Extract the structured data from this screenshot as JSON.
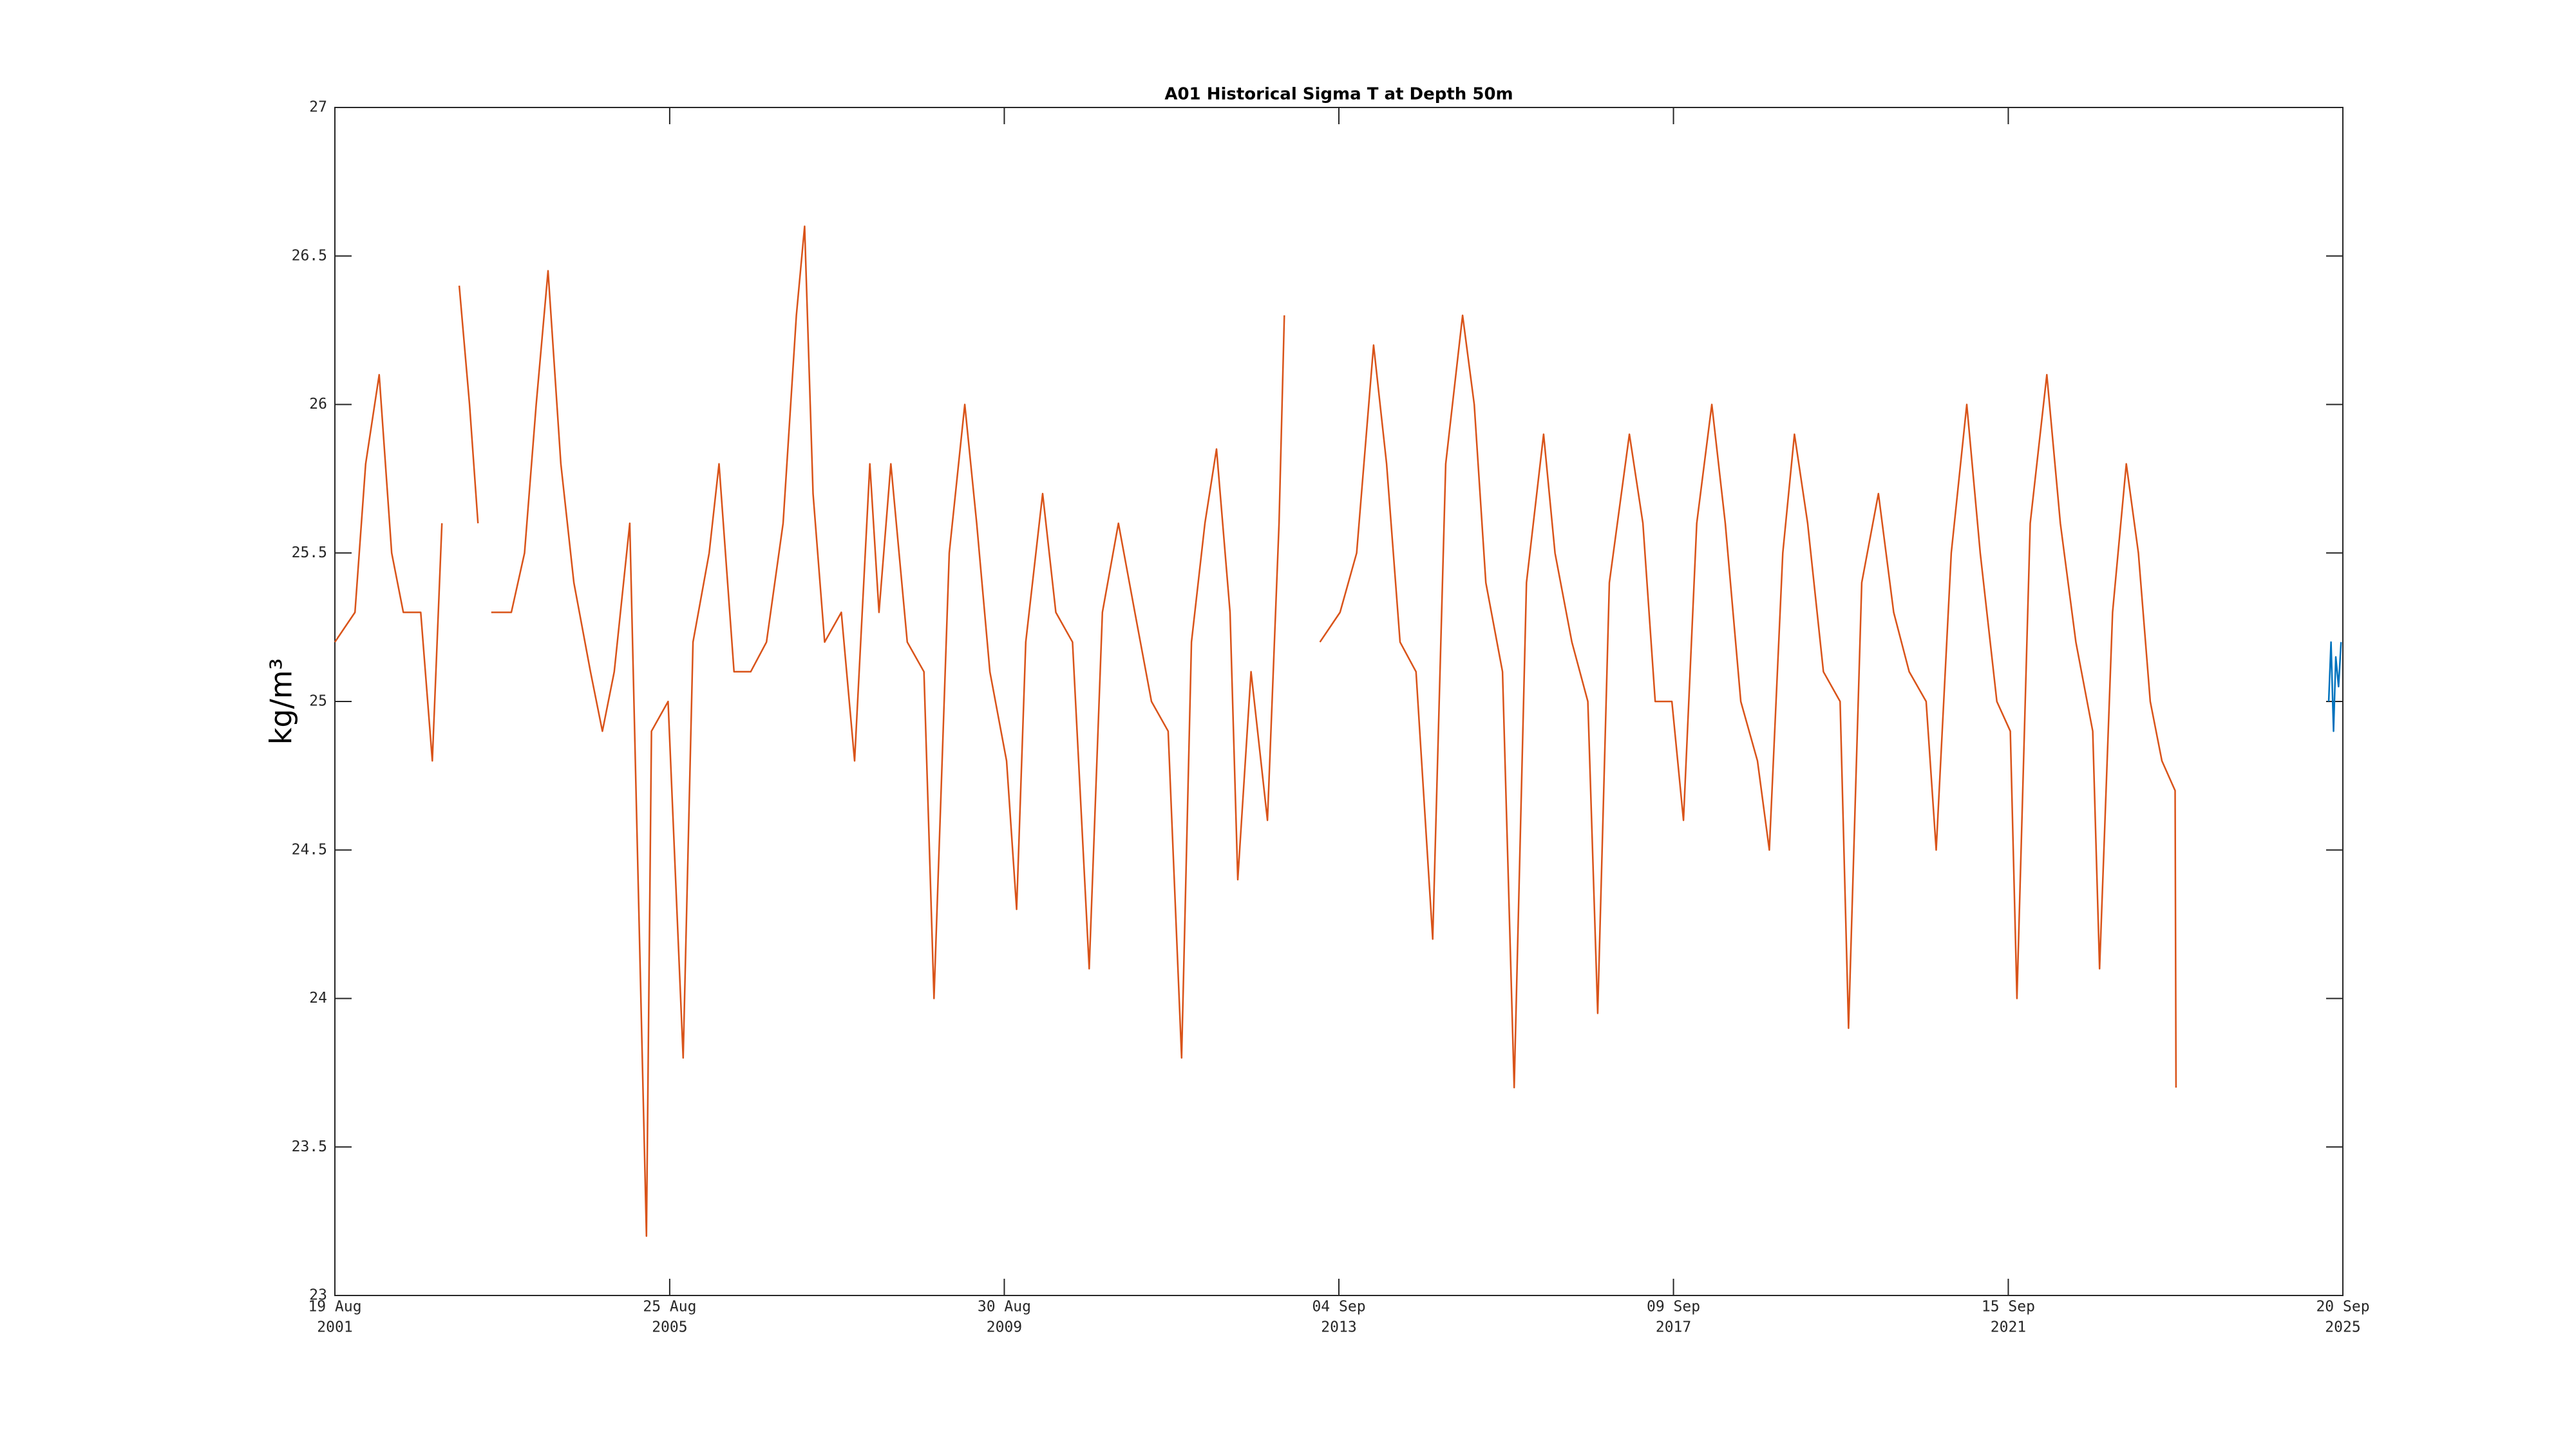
{
  "chart_data": {
    "type": "line",
    "title": "A01 Historical Sigma T at Depth 50m",
    "y_label": "kg/m³",
    "xlim": [
      "2001-08-19",
      "2025-09-20"
    ],
    "xticks": [
      {
        "value": "2001-08-19",
        "label": [
          "19 Aug",
          "2001"
        ]
      },
      {
        "value": "2005-08-25",
        "label": [
          "25 Aug",
          "2005"
        ]
      },
      {
        "value": "2009-08-30",
        "label": [
          "30 Aug",
          "2009"
        ]
      },
      {
        "value": "2013-09-04",
        "label": [
          "04 Sep",
          "2013"
        ]
      },
      {
        "value": "2017-09-09",
        "label": [
          "09 Sep",
          "2017"
        ]
      },
      {
        "value": "2021-09-15",
        "label": [
          "15 Sep",
          "2021"
        ]
      },
      {
        "value": "2025-09-20",
        "label": [
          "20 Sep",
          "2025"
        ]
      }
    ],
    "ylim": [
      23,
      27
    ],
    "yticks": [
      23,
      23.5,
      24,
      24.5,
      25,
      25.5,
      26,
      26.5,
      27
    ],
    "grid": false,
    "series": [
      {
        "color": "#d95319",
        "x": [
          "2001-08-19",
          "2001-11-15",
          "2002-01-01",
          "2002-03-01",
          "2002-04-25",
          "2002-06-15",
          "2002-08-30",
          "2002-10-20",
          "2002-12-01",
          "2003-01-01",
          "2003-02-15",
          "2003-04-01",
          "2003-05-08",
          "2003-06-01",
          "2003-07-05",
          "2003-10-01",
          "2003-11-28",
          "2004-01-18",
          "2004-03-10",
          "2004-05-05",
          "2004-07-01",
          "2004-09-12",
          "2004-11-03",
          "2004-12-25",
          "2005-03-03",
          "2005-05-15",
          "2005-06-06",
          "2005-08-18",
          "2005-10-23",
          "2005-12-05",
          "2006-02-14",
          "2006-03-29",
          "2006-06-03",
          "2006-08-15",
          "2006-10-23",
          "2007-01-04",
          "2007-03-03",
          "2007-04-08",
          "2007-05-15",
          "2007-07-05",
          "2007-09-16",
          "2007-11-13",
          "2008-01-19",
          "2008-02-28",
          "2008-04-20",
          "2008-07-01",
          "2008-09-12",
          "2008-10-26",
          "2009-01-01",
          "2009-03-10",
          "2009-05-01",
          "2009-06-28",
          "2009-09-09",
          "2009-10-23",
          "2009-12-02",
          "2010-02-14",
          "2010-04-13",
          "2010-06-25",
          "2010-09-06",
          "2010-11-03",
          "2011-01-12",
          "2011-03-25",
          "2011-06-06",
          "2011-08-18",
          "2011-10-16",
          "2011-11-28",
          "2012-01-26",
          "2012-03-17",
          "2012-05-15",
          "2012-06-18",
          "2012-08-15",
          "2012-10-26",
          "2012-12-16",
          "2013-01-08",
          "2013-03-01",
          "2013-06-13",
          "2013-09-09",
          "2013-11-21",
          "2014-02-03",
          "2014-04-01",
          "2014-05-30",
          "2014-08-08",
          "2014-10-20",
          "2014-12-16",
          "2015-02-28",
          "2015-04-20",
          "2015-06-10",
          "2015-08-22",
          "2015-10-12",
          "2015-12-05",
          "2016-02-18",
          "2016-04-08",
          "2016-06-21",
          "2016-08-30",
          "2016-10-12",
          "2016-12-02",
          "2017-02-28",
          "2017-04-28",
          "2017-06-21",
          "2017-09-02",
          "2017-10-23",
          "2017-12-20",
          "2018-02-24",
          "2018-04-24",
          "2018-07-01",
          "2018-09-12",
          "2018-11-03",
          "2019-01-01",
          "2019-02-21",
          "2019-04-20",
          "2019-06-28",
          "2019-09-09",
          "2019-10-16",
          "2019-12-13",
          "2020-02-24",
          "2020-05-01",
          "2020-07-08",
          "2020-09-20",
          "2020-11-03",
          "2021-01-08",
          "2021-03-17",
          "2021-05-15",
          "2021-07-27",
          "2021-09-24",
          "2021-10-23",
          "2021-12-20",
          "2022-03-03",
          "2022-05-01",
          "2022-07-08",
          "2022-09-20",
          "2022-10-20",
          "2022-12-16",
          "2023-02-14",
          "2023-04-08",
          "2023-05-30",
          "2023-07-20",
          "2023-09-16",
          "2023-09-20"
        ],
        "values": [
          25.2,
          25.3,
          25.8,
          26.1,
          25.5,
          25.3,
          25.3,
          24.8,
          25.6,
          null,
          26.4,
          26.0,
          25.6,
          null,
          25.3,
          25.3,
          25.5,
          26.0,
          26.45,
          25.8,
          25.4,
          25.1,
          24.9,
          25.1,
          25.6,
          23.2,
          24.9,
          25.0,
          23.8,
          25.2,
          25.5,
          25.8,
          25.1,
          25.1,
          25.2,
          25.6,
          26.3,
          26.6,
          25.7,
          25.2,
          25.3,
          24.8,
          25.8,
          25.3,
          25.8,
          25.2,
          25.1,
          24.0,
          25.5,
          26.0,
          25.6,
          25.1,
          24.8,
          24.3,
          25.2,
          25.7,
          25.3,
          25.2,
          24.1,
          25.3,
          25.6,
          25.3,
          25.0,
          24.9,
          23.8,
          25.2,
          25.6,
          25.85,
          25.3,
          24.4,
          25.1,
          24.6,
          25.6,
          26.3,
          null,
          25.2,
          25.3,
          25.5,
          26.2,
          25.8,
          25.2,
          25.1,
          24.2,
          25.8,
          26.3,
          26.0,
          25.4,
          25.1,
          23.7,
          25.4,
          25.9,
          25.5,
          25.2,
          25.0,
          23.95,
          25.4,
          25.9,
          25.6,
          25.0,
          25.0,
          24.6,
          25.6,
          26.0,
          25.6,
          25.0,
          24.8,
          24.5,
          25.5,
          25.9,
          25.6,
          25.1,
          25.0,
          23.9,
          25.4,
          25.7,
          25.3,
          25.1,
          25.0,
          24.5,
          25.5,
          26.0,
          25.5,
          25.0,
          24.9,
          24.0,
          25.6,
          26.1,
          25.6,
          25.2,
          24.9,
          24.1,
          25.3,
          25.8,
          25.5,
          25.0,
          24.8,
          24.7,
          23.7
        ]
      },
      {
        "color": "#0072bd",
        "x": [
          "2025-07-20",
          "2025-07-30",
          "2025-08-10",
          "2025-08-20",
          "2025-09-01",
          "2025-09-12"
        ],
        "values": [
          25.0,
          25.2,
          24.9,
          25.15,
          25.05,
          25.2
        ]
      }
    ]
  }
}
